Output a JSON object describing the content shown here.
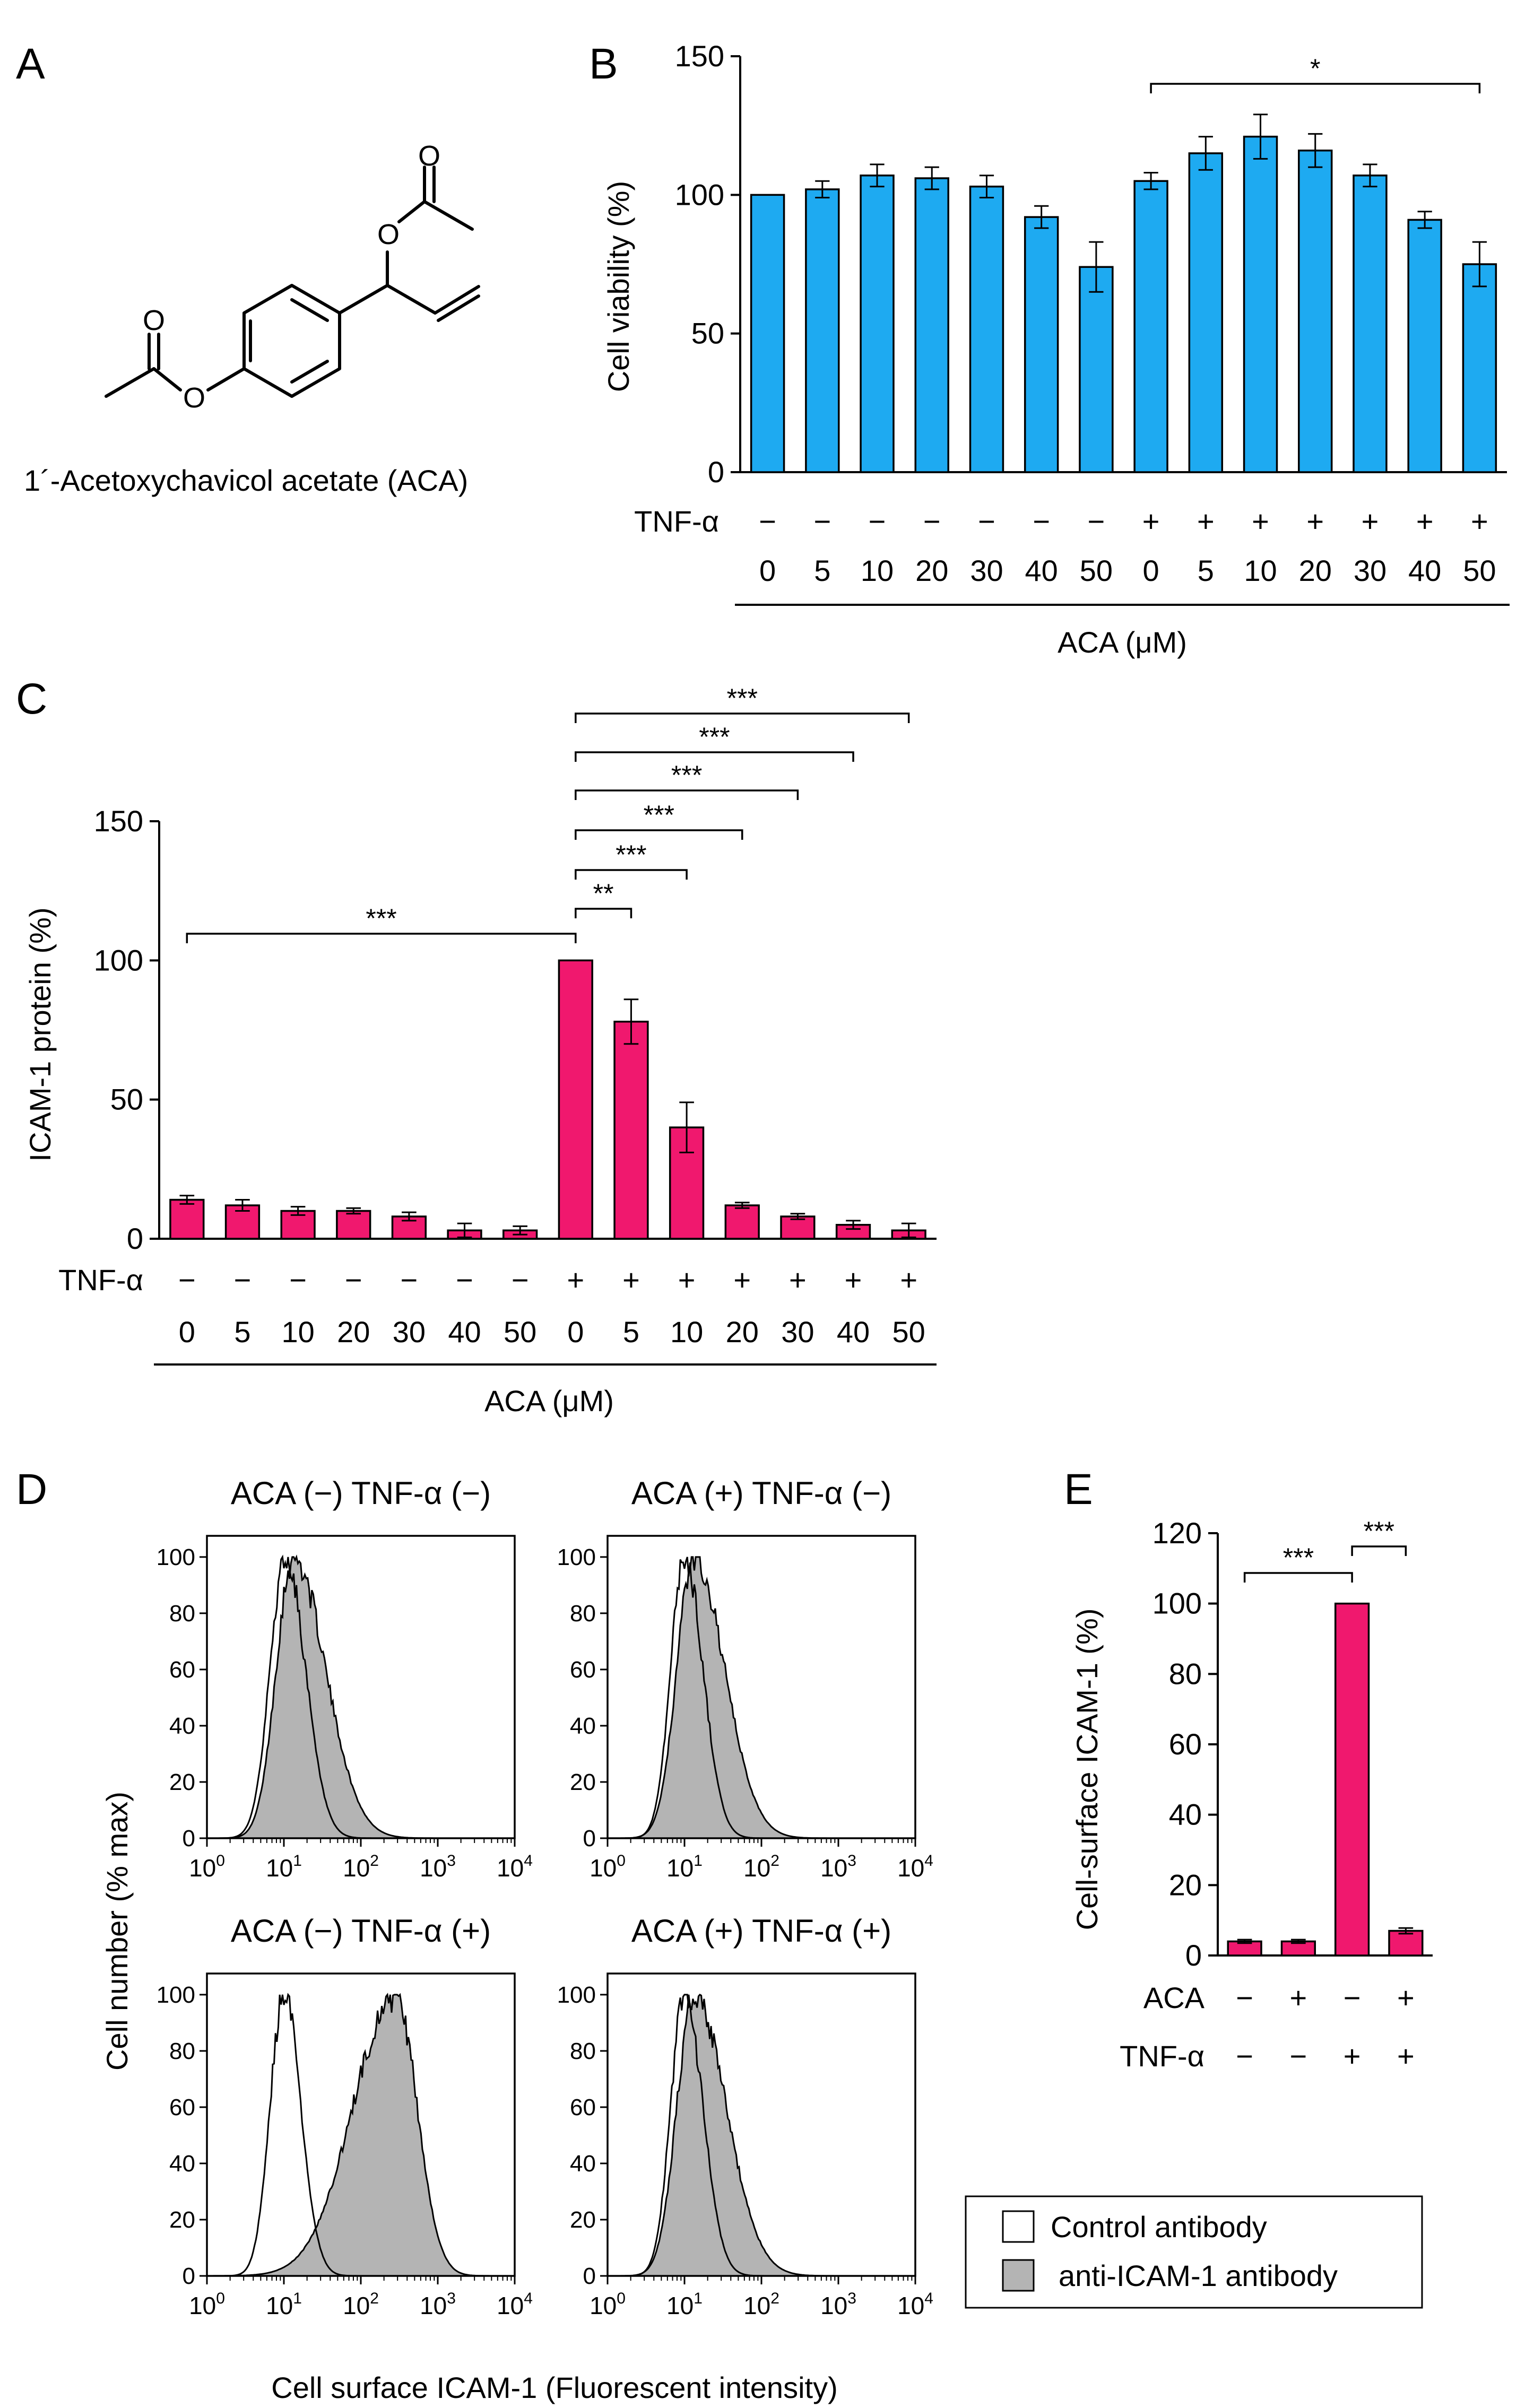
{
  "panel_labels": {
    "A": "A",
    "B": "B",
    "C": "C",
    "D": "D",
    "E": "E"
  },
  "compound_name": "1´-Acetoxychavicol acetate (ACA)",
  "colors": {
    "blue": "#1eaaf1",
    "magenta": "#f0186e",
    "gray": "#b4b4b4"
  },
  "chart_data": [
    {
      "id": "B",
      "type": "bar",
      "ylabel": "Cell viability (%)",
      "ylim": [
        0,
        150
      ],
      "yticks": [
        "0",
        "50",
        "100",
        "150"
      ],
      "row_labels": {
        "tnf": "TNF-α"
      },
      "tnf": [
        "−",
        "−",
        "−",
        "−",
        "−",
        "−",
        "−",
        "+",
        "+",
        "+",
        "+",
        "+",
        "+",
        "+"
      ],
      "categories": [
        "0",
        "5",
        "10",
        "20",
        "30",
        "40",
        "50",
        "0",
        "5",
        "10",
        "20",
        "30",
        "40",
        "50"
      ],
      "xlabel": "ACA (μM)",
      "values": [
        100,
        102,
        107,
        106,
        103,
        92,
        74,
        105,
        115,
        121,
        116,
        107,
        91,
        75
      ],
      "errors": [
        0,
        3,
        4,
        4,
        4,
        4,
        9,
        3,
        6,
        8,
        6,
        4,
        3,
        8
      ],
      "significance": [
        {
          "from": 7,
          "to": 13,
          "label": "*"
        }
      ]
    },
    {
      "id": "C",
      "type": "bar",
      "ylabel": "ICAM-1 protein (%)",
      "ylim": [
        0,
        150
      ],
      "yticks": [
        "0",
        "50",
        "100",
        "150"
      ],
      "row_labels": {
        "tnf": "TNF-α"
      },
      "tnf": [
        "−",
        "−",
        "−",
        "−",
        "−",
        "−",
        "−",
        "+",
        "+",
        "+",
        "+",
        "+",
        "+",
        "+"
      ],
      "categories": [
        "0",
        "5",
        "10",
        "20",
        "30",
        "40",
        "50",
        "0",
        "5",
        "10",
        "20",
        "30",
        "40",
        "50"
      ],
      "xlabel": "ACA (μM)",
      "values": [
        14,
        12,
        10,
        10,
        8,
        3,
        3,
        100,
        78,
        40,
        12,
        8,
        5,
        3
      ],
      "errors": [
        1.5,
        2,
        1.5,
        1,
        1.5,
        2.5,
        1.5,
        0,
        8,
        9,
        1,
        1,
        1.5,
        2.5
      ],
      "significance": [
        {
          "from": 0,
          "to": 7,
          "label": "***"
        },
        {
          "from": 7,
          "to": 8,
          "label": "**"
        },
        {
          "from": 7,
          "to": 9,
          "label": "***"
        },
        {
          "from": 7,
          "to": 10,
          "label": "***"
        },
        {
          "from": 7,
          "to": 11,
          "label": "***"
        },
        {
          "from": 7,
          "to": 12,
          "label": "***"
        },
        {
          "from": 7,
          "to": 13,
          "label": "***"
        }
      ]
    },
    {
      "id": "D",
      "type": "area",
      "ylabel": "Cell number (% max)",
      "xlabel": "Cell surface ICAM-1 (Fluorescent intensity)",
      "yticks": [
        "0",
        "20",
        "40",
        "60",
        "80",
        "100"
      ],
      "xtick_base": "10",
      "xtick_exponents": [
        "0",
        "1",
        "2",
        "3",
        "4"
      ],
      "log_x_range": [
        0,
        4
      ],
      "legend": {
        "control": "Control antibody",
        "anti": "anti-ICAM-1 antibody"
      },
      "panels": [
        {
          "title": "ACA (−) TNF-α (−)",
          "control": {
            "peak_log": 1.02,
            "sigma_left": 0.2,
            "sigma_right": 0.26
          },
          "anti": {
            "peak_log": 1.12,
            "sigma_left": 0.22,
            "sigma_right": 0.42
          }
        },
        {
          "title": "ACA (+) TNF-α (−)",
          "control": {
            "peak_log": 1.0,
            "sigma_left": 0.18,
            "sigma_right": 0.24
          },
          "anti": {
            "peak_log": 1.12,
            "sigma_left": 0.22,
            "sigma_right": 0.4
          }
        },
        {
          "title": "ACA (−) TNF-α (+)",
          "control": {
            "peak_log": 1.0,
            "sigma_left": 0.18,
            "sigma_right": 0.22
          },
          "anti": {
            "peak_log": 2.45,
            "sigma_left": 0.55,
            "sigma_right": 0.28
          }
        },
        {
          "title": "ACA (+) TNF-α (+)",
          "control": {
            "peak_log": 1.0,
            "sigma_left": 0.18,
            "sigma_right": 0.24
          },
          "anti": {
            "peak_log": 1.12,
            "sigma_left": 0.22,
            "sigma_right": 0.42
          }
        }
      ]
    },
    {
      "id": "E",
      "type": "bar",
      "ylabel": "Cell-surface ICAM-1 (%)",
      "ylim": [
        0,
        120
      ],
      "yticks": [
        "0",
        "20",
        "40",
        "60",
        "80",
        "100",
        "120"
      ],
      "row_labels": {
        "aca": "ACA",
        "tnf": "TNF-α"
      },
      "aca": [
        "−",
        "+",
        "−",
        "+"
      ],
      "tnf": [
        "−",
        "−",
        "+",
        "+"
      ],
      "values": [
        4,
        4,
        100,
        7
      ],
      "errors": [
        0.5,
        0.5,
        0,
        0.8
      ],
      "significance": [
        {
          "from": 0,
          "to": 2,
          "label": "***"
        },
        {
          "from": 2,
          "to": 3,
          "label": "***"
        }
      ]
    }
  ]
}
